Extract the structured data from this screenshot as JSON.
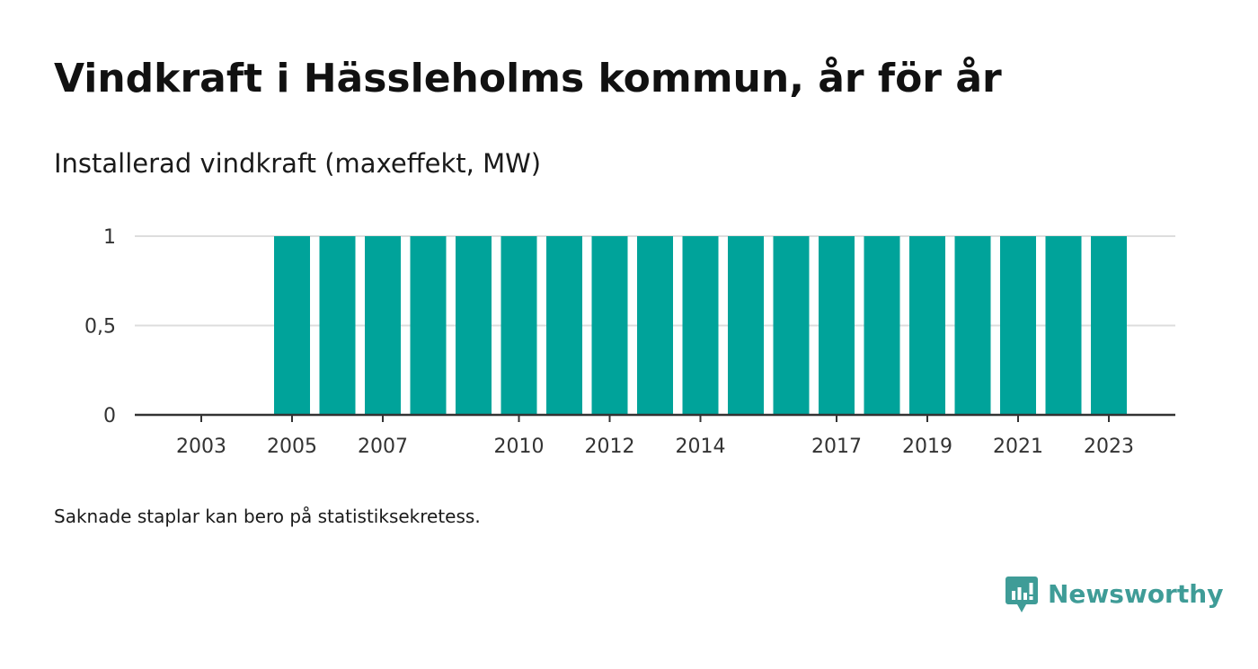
{
  "title": "Vindkraft i Hässleholms kommun, år för år",
  "subtitle": "Installerad vindkraft (maxeffekt, MW)",
  "note": "Saknade staplar kan bero på statistiksekretess.",
  "logo": {
    "text": "Newsworthy",
    "icon": "newsworthy-logo-icon"
  },
  "colors": {
    "bar": "#00a39a",
    "grid": "#dddddd",
    "axis": "#333333",
    "brand": "#3f9c97"
  },
  "chart_data": {
    "type": "bar",
    "categories": [
      "2003",
      "2004",
      "2005",
      "2006",
      "2007",
      "2008",
      "2009",
      "2010",
      "2011",
      "2012",
      "2013",
      "2014",
      "2015",
      "2016",
      "2017",
      "2018",
      "2019",
      "2020",
      "2021",
      "2022",
      "2023"
    ],
    "values": [
      null,
      null,
      1,
      1,
      1,
      1,
      1,
      1,
      1,
      1,
      1,
      1,
      1,
      1,
      1,
      1,
      1,
      1,
      1,
      1,
      1
    ],
    "x_tick_labels": [
      "2003",
      "2005",
      "2007",
      "2010",
      "2012",
      "2014",
      "2017",
      "2019",
      "2021",
      "2023"
    ],
    "y_ticks": [
      0,
      0.5,
      1
    ],
    "y_tick_labels": [
      "0",
      "0,5",
      "1"
    ],
    "ylim": [
      0,
      1
    ],
    "grid": true,
    "xlabel": "",
    "ylabel": ""
  }
}
